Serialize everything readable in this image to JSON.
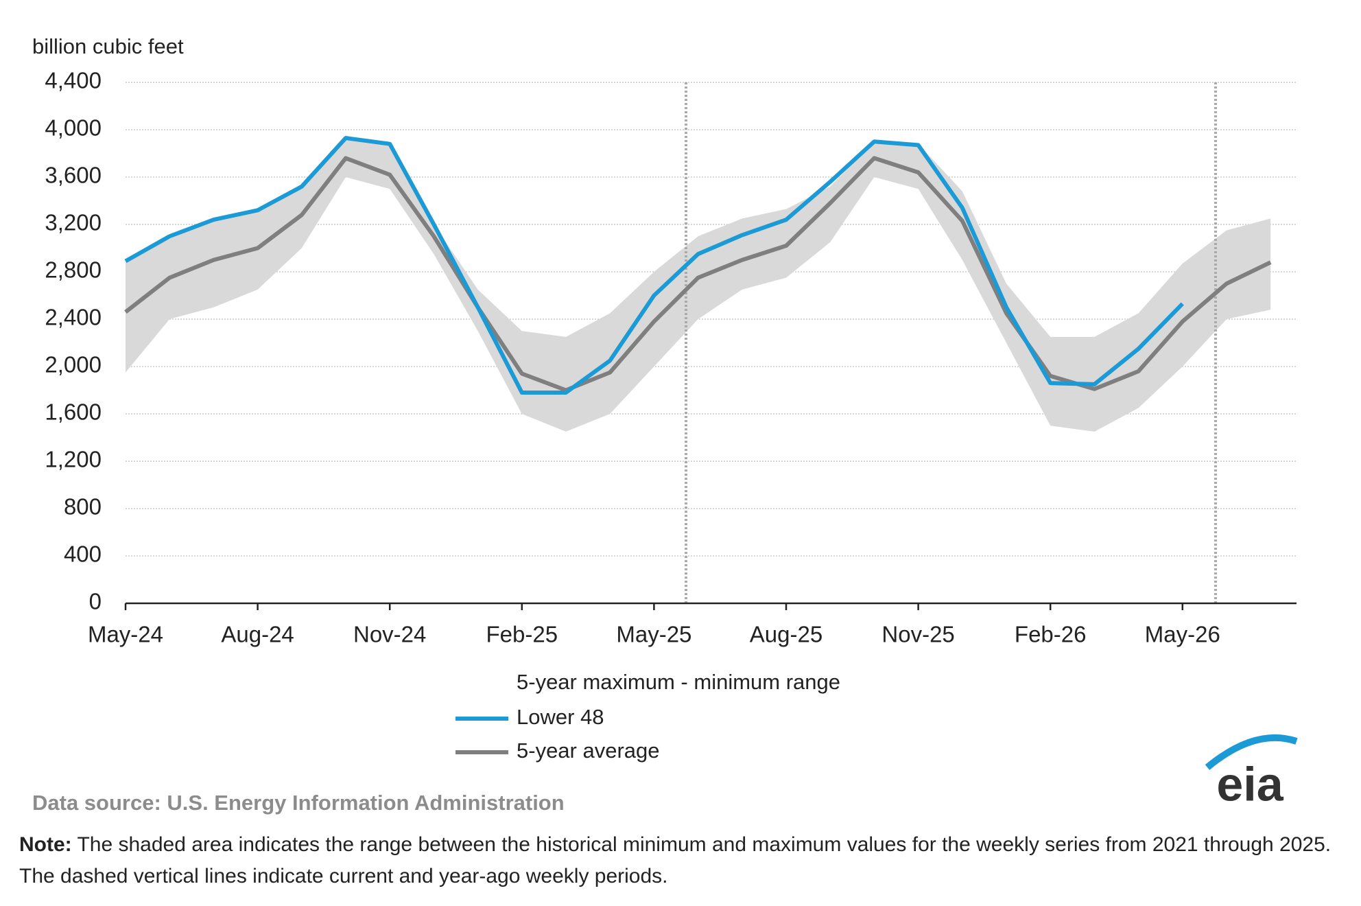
{
  "chart_data": {
    "type": "line",
    "y_axis_label": "billion cubic feet",
    "categories": [
      "May-24",
      null,
      null,
      "Aug-24",
      null,
      null,
      "Nov-24",
      null,
      null,
      "Feb-25",
      null,
      null,
      "May-25",
      null,
      null,
      "Aug-25",
      null,
      null,
      "Nov-25",
      null,
      null,
      "Feb-26",
      null,
      null,
      "May-26",
      null,
      null
    ],
    "ylim": [
      0,
      4400
    ],
    "yticks": [
      0,
      400,
      800,
      {
        "value": 1200,
        "label": "1,200"
      },
      {
        "value": 1600,
        "label": "1,600"
      },
      {
        "value": 2000,
        "label": "2,000"
      },
      {
        "value": 2400,
        "label": "2,400"
      },
      {
        "value": 2800,
        "label": "2,800"
      },
      {
        "value": 3200,
        "label": "3,200"
      },
      {
        "value": 3600,
        "label": "3,600"
      },
      {
        "value": 4000,
        "label": "4,000"
      },
      {
        "value": 4400,
        "label": "4,400"
      }
    ],
    "grid": true,
    "range": {
      "name": "5-year maximum - minimum range",
      "color": "#d9d9d9",
      "max": [
        2880,
        3080,
        3230,
        3330,
        3500,
        3950,
        3860,
        3200,
        2650,
        2300,
        2250,
        2450,
        2800,
        3100,
        3250,
        3330,
        3520,
        3900,
        3880,
        3480,
        2700,
        2250,
        2250,
        2450,
        2870,
        3150,
        3250
      ],
      "min": [
        1950,
        2400,
        2500,
        2650,
        3000,
        3600,
        3500,
        2950,
        2300,
        1600,
        1450,
        1600,
        2000,
        2400,
        2650,
        2750,
        3050,
        3600,
        3500,
        2900,
        2200,
        1500,
        1450,
        1650,
        2000,
        2400,
        2480
      ]
    },
    "series": [
      {
        "name": "Lower 48",
        "color": "#1b9ad6",
        "values": [
          2890,
          3100,
          3240,
          3320,
          3520,
          3930,
          3880,
          3200,
          2500,
          1780,
          1780,
          2050,
          2600,
          2950,
          3110,
          3240,
          3560,
          3900,
          3870,
          3340,
          2500,
          1860,
          1850,
          2150,
          2530,
          null,
          null
        ]
      },
      {
        "name": "5-year average",
        "color": "#7f7f7f",
        "values": [
          2460,
          2750,
          2900,
          3000,
          3280,
          3760,
          3620,
          3100,
          2500,
          1940,
          1800,
          1950,
          2380,
          2750,
          2900,
          3020,
          3380,
          3760,
          3640,
          3230,
          2450,
          1920,
          1810,
          1960,
          2380,
          2700,
          2880
        ]
      }
    ],
    "source": "Data source:  U.S. Energy Information Administration",
    "logo": "eia"
  },
  "note": {
    "label": "Note:",
    "text": " The shaded area indicates the range between the historical minimum and maximum values for the weekly series from 2021 through 2025. The dashed vertical lines indicate current and year-ago weekly periods."
  }
}
